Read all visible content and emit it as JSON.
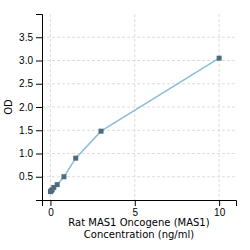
{
  "chart_data": {
    "type": "line",
    "xlabel": "Rat MAS1 Oncogene (MAS1)\nConcentration (ng/ml)",
    "ylabel": "OD",
    "x": [
      0.0,
      0.05,
      0.1,
      0.2,
      0.4,
      0.8,
      1.5,
      3.0,
      10.0
    ],
    "values": [
      0.18,
      0.2,
      0.22,
      0.27,
      0.33,
      0.5,
      0.9,
      1.48,
      3.05
    ],
    "color": "#8bbdd9",
    "marker": "square",
    "xlim": [
      -0.5,
      11
    ],
    "ylim": [
      0.0,
      4.0
    ],
    "xticks": [
      0,
      5,
      10
    ],
    "yticks": [
      0.5,
      {
        "value": 1.0,
        "label": "1.0"
      },
      1.5,
      {
        "value": 2.0,
        "label": "2.0"
      },
      2.5,
      {
        "value": 3.0,
        "label": "3.0"
      },
      3.5
    ],
    "grid": true
  }
}
